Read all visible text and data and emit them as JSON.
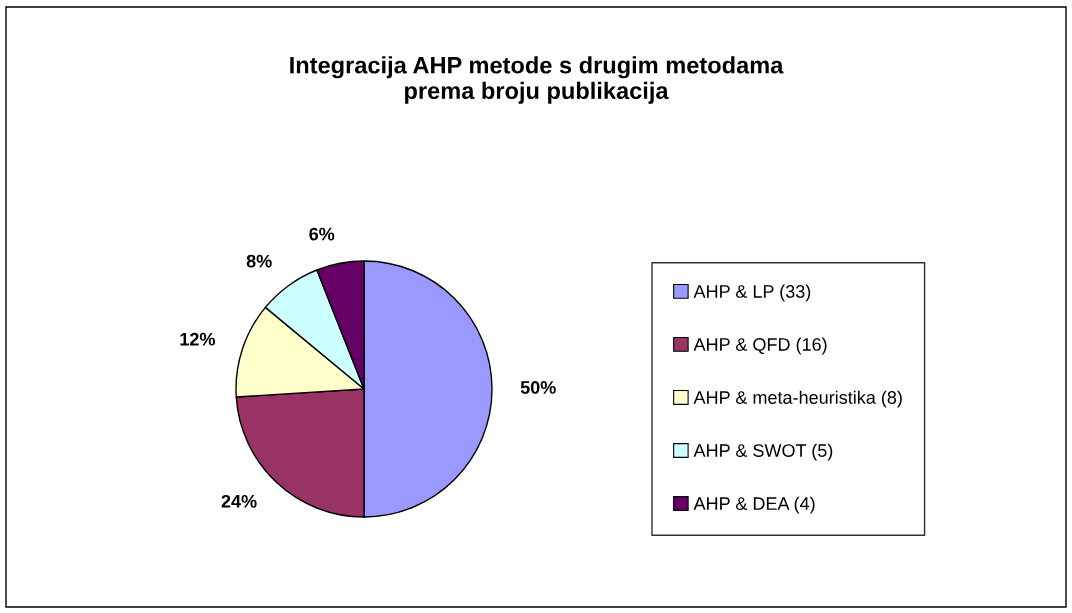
{
  "chart_data": {
    "type": "pie",
    "title": "Integracija AHP metode s drugim metodama\nprema broju publikacija",
    "categories": [
      "AHP & LP (33)",
      "AHP & QFD (16)",
      "AHP & meta-heuristika (8)",
      "AHP & SWOT (5)",
      "AHP & DEA (4)"
    ],
    "values": [
      50,
      24,
      12,
      8,
      6
    ],
    "value_labels": [
      "50%",
      "24%",
      "12%",
      "8%",
      "6%"
    ],
    "colors": [
      "#9999ff",
      "#993366",
      "#ffffcc",
      "#ccffff",
      "#660066"
    ],
    "legend": "right"
  }
}
